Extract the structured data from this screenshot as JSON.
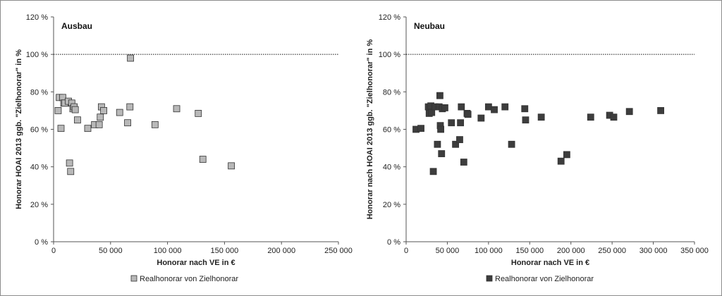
{
  "chart_data": [
    {
      "type": "scatter",
      "title": "Ausbau",
      "xlabel": "Honorar nach VE in €",
      "ylabel": "Honorar HOAI 2013 ggb. \"Zielhonorar\" in %",
      "xlim": [
        0,
        250000
      ],
      "ylim": [
        0,
        120
      ],
      "x_ticks": [
        "0",
        "50 000",
        "100 000",
        "150 000",
        "200 000",
        "250 000"
      ],
      "y_ticks": [
        "0 %",
        "20 %",
        "40 %",
        "60 %",
        "80 %",
        "100 %",
        "120 %"
      ],
      "reference_line": 100,
      "legend_position": "bottom",
      "marker_color": "#b8b8b8",
      "series": [
        {
          "name": "Realhonorar von Zielhonorar",
          "points": [
            [
              4000,
              70
            ],
            [
              5000,
              77
            ],
            [
              6500,
              60.5
            ],
            [
              8000,
              77
            ],
            [
              9000,
              74
            ],
            [
              10000,
              74
            ],
            [
              13000,
              75
            ],
            [
              14000,
              42
            ],
            [
              15000,
              37.5
            ],
            [
              16000,
              74
            ],
            [
              17000,
              71
            ],
            [
              18000,
              72
            ],
            [
              19000,
              70.5
            ],
            [
              21000,
              65
            ],
            [
              30000,
              60.5
            ],
            [
              36000,
              62.5
            ],
            [
              40000,
              62.5
            ],
            [
              41000,
              66.5
            ],
            [
              42000,
              72
            ],
            [
              44000,
              70
            ],
            [
              58000,
              69
            ],
            [
              65000,
              63.5
            ],
            [
              67000,
              72
            ],
            [
              67500,
              98
            ],
            [
              89000,
              62.5
            ],
            [
              108000,
              71
            ],
            [
              127000,
              68.5
            ],
            [
              131000,
              44
            ],
            [
              156000,
              40.5
            ]
          ]
        }
      ]
    },
    {
      "type": "scatter",
      "title": "Neubau",
      "xlabel": "Honorar nach VE in €",
      "ylabel": "Honorar nach HOAI 2013 ggb. \"Zielhonorar\" in %",
      "xlim": [
        0,
        350000
      ],
      "ylim": [
        0,
        120
      ],
      "x_ticks": [
        "0",
        "50 000",
        "100 000",
        "150 000",
        "200 000",
        "250 000",
        "300 000",
        "350 000"
      ],
      "y_ticks": [
        "0 %",
        "20 %",
        "40 %",
        "60 %",
        "80 %",
        "100 %",
        "120 %"
      ],
      "reference_line": 100,
      "legend_position": "bottom",
      "marker_color": "#3d3d3d",
      "series": [
        {
          "name": "Realhonorar von Zielhonorar",
          "points": [
            [
              12000,
              60
            ],
            [
              18000,
              60.5
            ],
            [
              27000,
              72
            ],
            [
              28000,
              68.5
            ],
            [
              30000,
              72.5
            ],
            [
              31000,
              69
            ],
            [
              33000,
              37.5
            ],
            [
              35000,
              72
            ],
            [
              38000,
              52
            ],
            [
              40000,
              72
            ],
            [
              41000,
              78
            ],
            [
              41500,
              62
            ],
            [
              42000,
              60
            ],
            [
              43000,
              47
            ],
            [
              44000,
              71
            ],
            [
              47000,
              71.5
            ],
            [
              55000,
              63.5
            ],
            [
              60000,
              52
            ],
            [
              65000,
              54.5
            ],
            [
              66000,
              63.5
            ],
            [
              67000,
              72
            ],
            [
              70000,
              42.5
            ],
            [
              74000,
              68.5
            ],
            [
              75000,
              68
            ],
            [
              91000,
              66
            ],
            [
              100000,
              72
            ],
            [
              107000,
              70.5
            ],
            [
              120000,
              72
            ],
            [
              128000,
              52
            ],
            [
              144000,
              71
            ],
            [
              145000,
              65
            ],
            [
              164000,
              66.5
            ],
            [
              188000,
              43
            ],
            [
              195000,
              46.5
            ],
            [
              224000,
              66.5
            ],
            [
              247000,
              67.5
            ],
            [
              252000,
              66.5
            ],
            [
              271000,
              69.5
            ],
            [
              309000,
              70
            ]
          ]
        }
      ]
    }
  ]
}
